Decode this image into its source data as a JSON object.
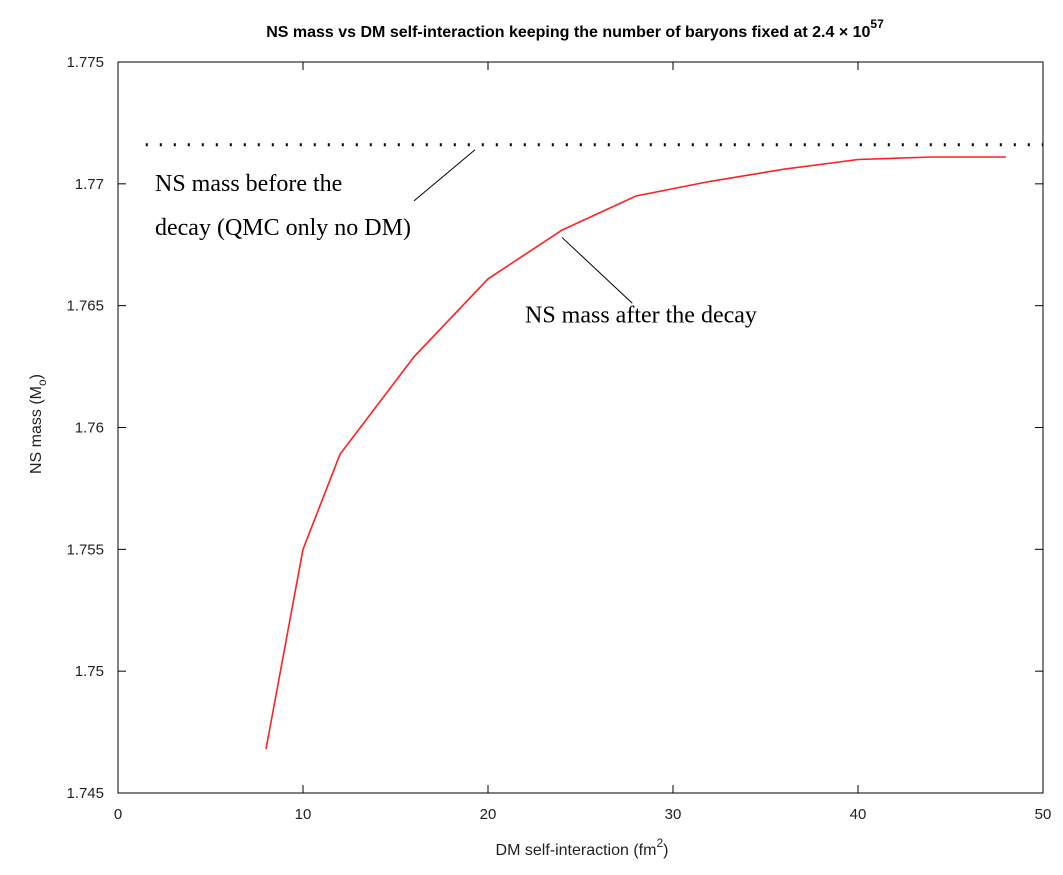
{
  "chart_data": {
    "type": "line",
    "title": "NS mass vs DM self-interaction keeping the number of baryons fixed at 2.4 × 10",
    "title_superscript": "57",
    "xlabel": "DM self-interaction (fm",
    "xlabel_superscript": "2",
    "xlabel_suffix": ")",
    "ylabel": "NS mass (M",
    "ylabel_subscript": "o",
    "ylabel_suffix": ")",
    "xlim": [
      0,
      50
    ],
    "ylim": [
      1.745,
      1.775
    ],
    "xticks": [
      "0",
      "10",
      "20",
      "30",
      "40",
      "50"
    ],
    "yticks": [
      "1.745",
      "1.75",
      "1.755",
      "1.76",
      "1.765",
      "1.77",
      "1.775"
    ],
    "grid": false,
    "series": [
      {
        "color": "#ff2020",
        "style": "solid",
        "x": [
          8,
          10,
          12,
          16,
          20,
          24,
          28,
          32,
          36,
          40,
          44,
          48
        ],
        "y": [
          1.7468,
          1.755,
          1.7589,
          1.7629,
          1.7661,
          1.7681,
          1.7695,
          1.7701,
          1.7706,
          1.771,
          1.7711,
          1.7711
        ]
      },
      {
        "color": "#000000",
        "style": "dotted",
        "x": [
          1.5,
          50
        ],
        "y": [
          1.7716,
          1.7716
        ]
      }
    ],
    "annotations": [
      {
        "text": "NS mass before the",
        "x": 2,
        "y": 1.7697
      },
      {
        "text": "decay (QMC only no DM)",
        "x": 2,
        "y": 1.7679
      },
      {
        "text": "NS mass after the decay",
        "x": 22,
        "y": 1.7643
      }
    ],
    "pointers": [
      {
        "from": [
          16,
          1.7693
        ],
        "to": [
          19.3,
          1.7714
        ]
      },
      {
        "from": [
          24,
          1.7678
        ],
        "to": [
          27.8,
          1.7651
        ]
      }
    ]
  }
}
